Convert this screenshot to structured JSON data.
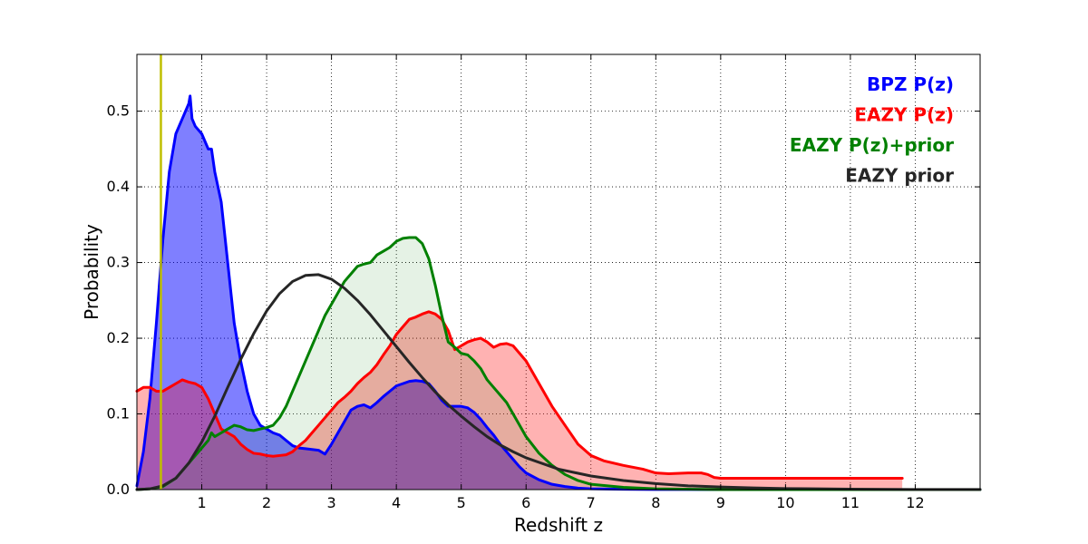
{
  "chart_data": {
    "type": "area",
    "title": "",
    "xlabel": "Redshift z",
    "ylabel": "Probability",
    "xlim": [
      0,
      13
    ],
    "ylim": [
      0,
      0.575
    ],
    "xticks": [
      1,
      2,
      3,
      4,
      5,
      6,
      7,
      8,
      9,
      10,
      11,
      12
    ],
    "yticks": [
      0.0,
      0.1,
      0.2,
      0.3,
      0.4,
      0.5
    ],
    "ytick_labels": [
      "0.0",
      "0.1",
      "0.2",
      "0.3",
      "0.4",
      "0.5"
    ],
    "grid": true,
    "legend_position": "top-right",
    "vertical_line": {
      "x": 0.37,
      "color": "#bfbf00"
    },
    "series": [
      {
        "name": "BPZ P(z)",
        "color": "#0000ff",
        "fill": "#0000ff",
        "fill_opacity": 0.5,
        "x": [
          0,
          0.1,
          0.2,
          0.3,
          0.4,
          0.5,
          0.6,
          0.7,
          0.75,
          0.8,
          0.82,
          0.85,
          0.9,
          1.0,
          1.1,
          1.15,
          1.2,
          1.3,
          1.4,
          1.5,
          1.6,
          1.7,
          1.8,
          1.9,
          2.0,
          2.1,
          2.2,
          2.3,
          2.4,
          2.5,
          2.6,
          2.7,
          2.8,
          2.9,
          3.0,
          3.1,
          3.2,
          3.3,
          3.4,
          3.5,
          3.6,
          3.7,
          3.8,
          3.9,
          4.0,
          4.1,
          4.2,
          4.3,
          4.4,
          4.5,
          4.6,
          4.7,
          4.8,
          4.9,
          5.0,
          5.1,
          5.2,
          5.3,
          5.4,
          5.5,
          5.6,
          5.7,
          5.8,
          5.9,
          6.0,
          6.2,
          6.4,
          6.6,
          6.8,
          7.0,
          7.5,
          8.0,
          9.0,
          10.0,
          11.0,
          12.0,
          13.0
        ],
        "y": [
          0.005,
          0.05,
          0.12,
          0.22,
          0.33,
          0.42,
          0.47,
          0.49,
          0.5,
          0.51,
          0.52,
          0.49,
          0.48,
          0.47,
          0.45,
          0.45,
          0.42,
          0.38,
          0.3,
          0.22,
          0.17,
          0.13,
          0.1,
          0.085,
          0.08,
          0.075,
          0.072,
          0.065,
          0.058,
          0.055,
          0.054,
          0.053,
          0.052,
          0.047,
          0.06,
          0.075,
          0.09,
          0.105,
          0.11,
          0.112,
          0.108,
          0.115,
          0.123,
          0.13,
          0.137,
          0.14,
          0.143,
          0.144,
          0.143,
          0.14,
          0.13,
          0.118,
          0.11,
          0.11,
          0.11,
          0.108,
          0.102,
          0.093,
          0.082,
          0.072,
          0.06,
          0.05,
          0.04,
          0.03,
          0.022,
          0.013,
          0.007,
          0.004,
          0.002,
          0.001,
          0.0005,
          0.0002,
          0,
          0,
          0,
          0,
          0
        ]
      },
      {
        "name": "EAZY P(z)",
        "color": "#ff0000",
        "fill": "#ff0000",
        "fill_opacity": 0.3,
        "x": [
          0,
          0.1,
          0.2,
          0.3,
          0.4,
          0.5,
          0.6,
          0.7,
          0.8,
          0.9,
          1.0,
          1.1,
          1.2,
          1.3,
          1.4,
          1.5,
          1.6,
          1.7,
          1.8,
          1.9,
          2.0,
          2.1,
          2.2,
          2.3,
          2.4,
          2.5,
          2.6,
          2.7,
          2.8,
          2.9,
          3.0,
          3.1,
          3.2,
          3.3,
          3.4,
          3.5,
          3.6,
          3.7,
          3.8,
          3.9,
          4.0,
          4.1,
          4.2,
          4.3,
          4.4,
          4.5,
          4.6,
          4.7,
          4.8,
          4.9,
          5.0,
          5.1,
          5.2,
          5.3,
          5.4,
          5.5,
          5.6,
          5.7,
          5.8,
          5.9,
          6.0,
          6.2,
          6.4,
          6.6,
          6.8,
          7.0,
          7.2,
          7.5,
          7.8,
          8.0,
          8.2,
          8.5,
          8.7,
          8.8,
          8.9,
          9.0,
          9.5,
          10.0,
          10.5,
          11.0,
          11.5,
          11.8
        ],
        "y": [
          0.13,
          0.135,
          0.135,
          0.13,
          0.13,
          0.135,
          0.14,
          0.145,
          0.142,
          0.14,
          0.135,
          0.12,
          0.1,
          0.08,
          0.075,
          0.07,
          0.06,
          0.053,
          0.048,
          0.047,
          0.045,
          0.044,
          0.045,
          0.046,
          0.05,
          0.058,
          0.065,
          0.075,
          0.085,
          0.095,
          0.105,
          0.115,
          0.122,
          0.13,
          0.14,
          0.148,
          0.155,
          0.165,
          0.178,
          0.19,
          0.205,
          0.215,
          0.225,
          0.228,
          0.232,
          0.235,
          0.232,
          0.225,
          0.21,
          0.185,
          0.19,
          0.195,
          0.198,
          0.2,
          0.195,
          0.188,
          0.192,
          0.193,
          0.19,
          0.18,
          0.17,
          0.14,
          0.11,
          0.085,
          0.06,
          0.045,
          0.038,
          0.032,
          0.027,
          0.022,
          0.021,
          0.022,
          0.022,
          0.02,
          0.016,
          0.015,
          0.015,
          0.015,
          0.015,
          0.015,
          0.015,
          0.015
        ]
      },
      {
        "name": "EAZY P(z)+prior",
        "color": "#008000",
        "fill": "#008000",
        "fill_opacity": 0.1,
        "x": [
          0,
          0.2,
          0.4,
          0.6,
          0.8,
          1.0,
          1.1,
          1.15,
          1.2,
          1.3,
          1.4,
          1.5,
          1.6,
          1.7,
          1.8,
          1.9,
          2.0,
          2.1,
          2.2,
          2.3,
          2.4,
          2.5,
          2.6,
          2.7,
          2.8,
          2.9,
          3.0,
          3.1,
          3.2,
          3.3,
          3.4,
          3.5,
          3.6,
          3.7,
          3.8,
          3.9,
          4.0,
          4.1,
          4.2,
          4.3,
          4.4,
          4.5,
          4.6,
          4.7,
          4.8,
          4.9,
          5.0,
          5.1,
          5.2,
          5.3,
          5.4,
          5.5,
          5.6,
          5.7,
          5.8,
          5.9,
          6.0,
          6.2,
          6.4,
          6.6,
          6.8,
          7.0,
          7.5,
          8.0,
          9.0,
          10.0,
          11.0,
          12.0,
          13.0
        ],
        "y": [
          0,
          0.001,
          0.004,
          0.015,
          0.035,
          0.055,
          0.065,
          0.075,
          0.07,
          0.075,
          0.08,
          0.085,
          0.083,
          0.079,
          0.078,
          0.08,
          0.082,
          0.085,
          0.095,
          0.11,
          0.13,
          0.15,
          0.17,
          0.19,
          0.21,
          0.23,
          0.245,
          0.26,
          0.275,
          0.285,
          0.295,
          0.298,
          0.3,
          0.31,
          0.315,
          0.32,
          0.328,
          0.332,
          0.333,
          0.333,
          0.325,
          0.305,
          0.27,
          0.23,
          0.195,
          0.188,
          0.18,
          0.178,
          0.17,
          0.16,
          0.145,
          0.135,
          0.125,
          0.115,
          0.1,
          0.085,
          0.07,
          0.048,
          0.032,
          0.02,
          0.012,
          0.007,
          0.003,
          0.001,
          0,
          0,
          0,
          0,
          0
        ]
      },
      {
        "name": "EAZY prior",
        "color": "#262626",
        "fill": "none",
        "fill_opacity": 0,
        "x": [
          0,
          0.2,
          0.4,
          0.6,
          0.8,
          1.0,
          1.2,
          1.4,
          1.6,
          1.8,
          2.0,
          2.2,
          2.4,
          2.6,
          2.8,
          3.0,
          3.2,
          3.4,
          3.6,
          3.8,
          4.0,
          4.2,
          4.4,
          4.6,
          4.8,
          5.0,
          5.2,
          5.4,
          5.6,
          5.8,
          6.0,
          6.5,
          7.0,
          7.5,
          8.0,
          8.5,
          9.0,
          9.5,
          10.0,
          11.0,
          12.0,
          13.0
        ],
        "y": [
          0,
          0.001,
          0.005,
          0.015,
          0.035,
          0.063,
          0.097,
          0.135,
          0.172,
          0.206,
          0.236,
          0.259,
          0.275,
          0.283,
          0.284,
          0.278,
          0.266,
          0.25,
          0.231,
          0.21,
          0.189,
          0.168,
          0.148,
          0.129,
          0.112,
          0.097,
          0.083,
          0.07,
          0.059,
          0.05,
          0.042,
          0.027,
          0.018,
          0.012,
          0.008,
          0.005,
          0.0035,
          0.0022,
          0.0014,
          0.0006,
          0.0002,
          0.0001
        ]
      }
    ]
  }
}
